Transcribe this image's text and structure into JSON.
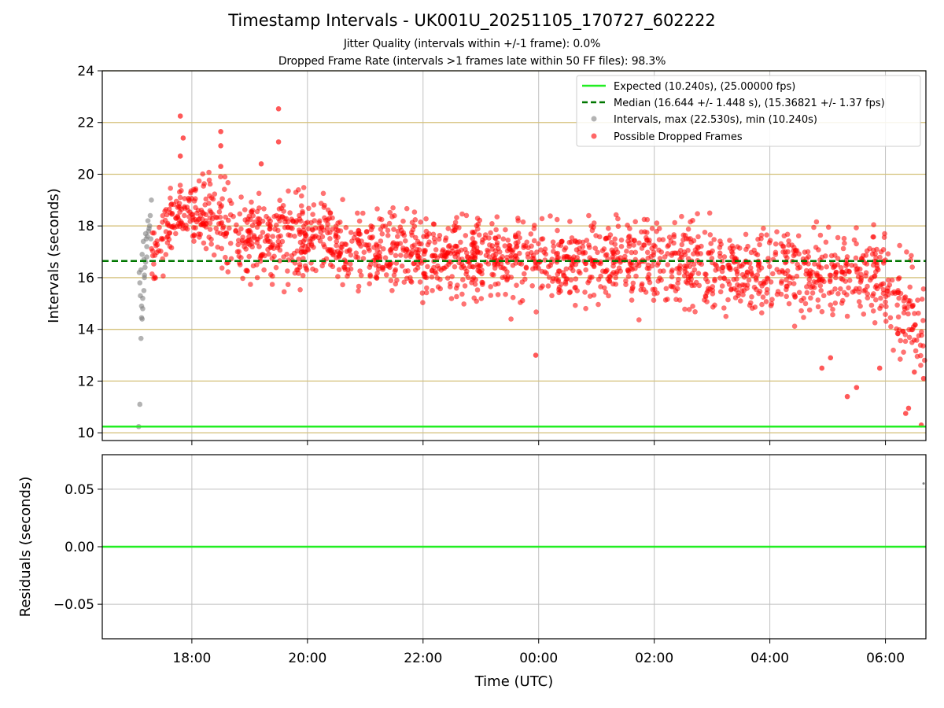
{
  "title": "Timestamp Intervals - UK001U_20251105_170727_602222",
  "subtitle_jitter": "Jitter Quality (intervals within +/-1 frame): 0.0%",
  "subtitle_dropped": "Dropped Frame Rate (intervals >1 frames late within 50 FF files): 98.3%",
  "colors": {
    "expected": "#22ee22",
    "median": "#007700",
    "intervals": "#808080",
    "dropped": "#ff0000",
    "hgrid": "#d4c17a",
    "vgrid": "#c0c0c0"
  },
  "chart_data": [
    {
      "type": "scatter",
      "panel": "top",
      "ylabel": "Intervals (seconds)",
      "ylim": [
        9.7,
        24
      ],
      "yticks": [
        "10",
        "12",
        "14",
        "16",
        "18",
        "20",
        "22",
        "24"
      ],
      "ytick_values": [
        10,
        12,
        14,
        16,
        18,
        20,
        22,
        24
      ],
      "xlim_hours": [
        16.45,
        30.7
      ],
      "xtick_values": [
        18,
        20,
        22,
        24,
        26,
        28,
        30
      ],
      "grid": true,
      "legend_placement": "top-right",
      "expected_interval": 10.24,
      "median_interval": 16.644,
      "legend": [
        "Expected (10.240s), (25.00000 fps)",
        "Median (16.644 +/- 1.448 s), (15.36821 +/- 1.37 fps)",
        "Intervals, max (22.530s), min (10.240s)",
        "Possible Dropped Frames"
      ],
      "series": [
        {
          "name": "Intervals, max (22.530s), min (10.240s)",
          "x_hours": [
            17.08,
            17.1,
            17.12,
            17.14,
            17.15,
            17.17,
            17.18,
            17.2,
            17.22,
            17.23,
            17.25,
            17.27,
            17.28,
            17.3,
            17.1,
            17.12,
            17.14,
            17.16,
            17.18,
            17.2,
            17.22,
            17.11,
            17.13,
            17.09,
            17.15,
            17.19,
            17.21,
            17.24,
            17.26,
            17.17,
            17.13,
            17.29
          ],
          "values": [
            10.24,
            11.1,
            13.65,
            14.4,
            14.8,
            15.5,
            16.1,
            16.6,
            17.2,
            17.6,
            17.8,
            18.0,
            18.4,
            19.0,
            15.8,
            16.3,
            16.9,
            17.4,
            16.0,
            17.7,
            16.8,
            15.3,
            14.45,
            16.2,
            15.2,
            16.4,
            17.5,
            18.2,
            17.9,
            16.7,
            14.9,
            17.5
          ]
        },
        {
          "name": "Possible Dropped Frames",
          "note": "dense cloud: ~2000 points generated below from these envelopes",
          "x_hours": [
            17.8,
            17.85,
            17.8,
            18.5,
            18.5,
            18.5,
            19.5,
            19.5,
            19.2,
            23.95,
            29.34,
            29.5,
            30.35,
            30.4,
            30.62,
            30.66,
            29.9,
            28.9,
            29.05,
            30.5
          ],
          "values": [
            22.25,
            21.4,
            20.7,
            21.65,
            21.1,
            20.3,
            22.53,
            21.25,
            20.4,
            13.0,
            11.4,
            11.75,
            10.75,
            10.95,
            10.3,
            12.1,
            12.5,
            12.5,
            12.9,
            12.35
          ]
        }
      ]
    },
    {
      "type": "scatter",
      "panel": "bottom",
      "xlabel": "Time (UTC)",
      "ylabel": "Residuals (seconds)",
      "ylim": [
        -0.08,
        0.08
      ],
      "yticks": [
        "0.05",
        "0.00",
        "−0.05"
      ],
      "ytick_values": [
        0.05,
        0.0,
        -0.05
      ],
      "xticks": [
        "18:00",
        "20:00",
        "22:00",
        "00:00",
        "02:00",
        "04:00",
        "06:00"
      ],
      "grid": true,
      "series": [
        {
          "name": "",
          "x_hours": [
            30.66
          ],
          "values": [
            0.055
          ]
        }
      ]
    }
  ]
}
